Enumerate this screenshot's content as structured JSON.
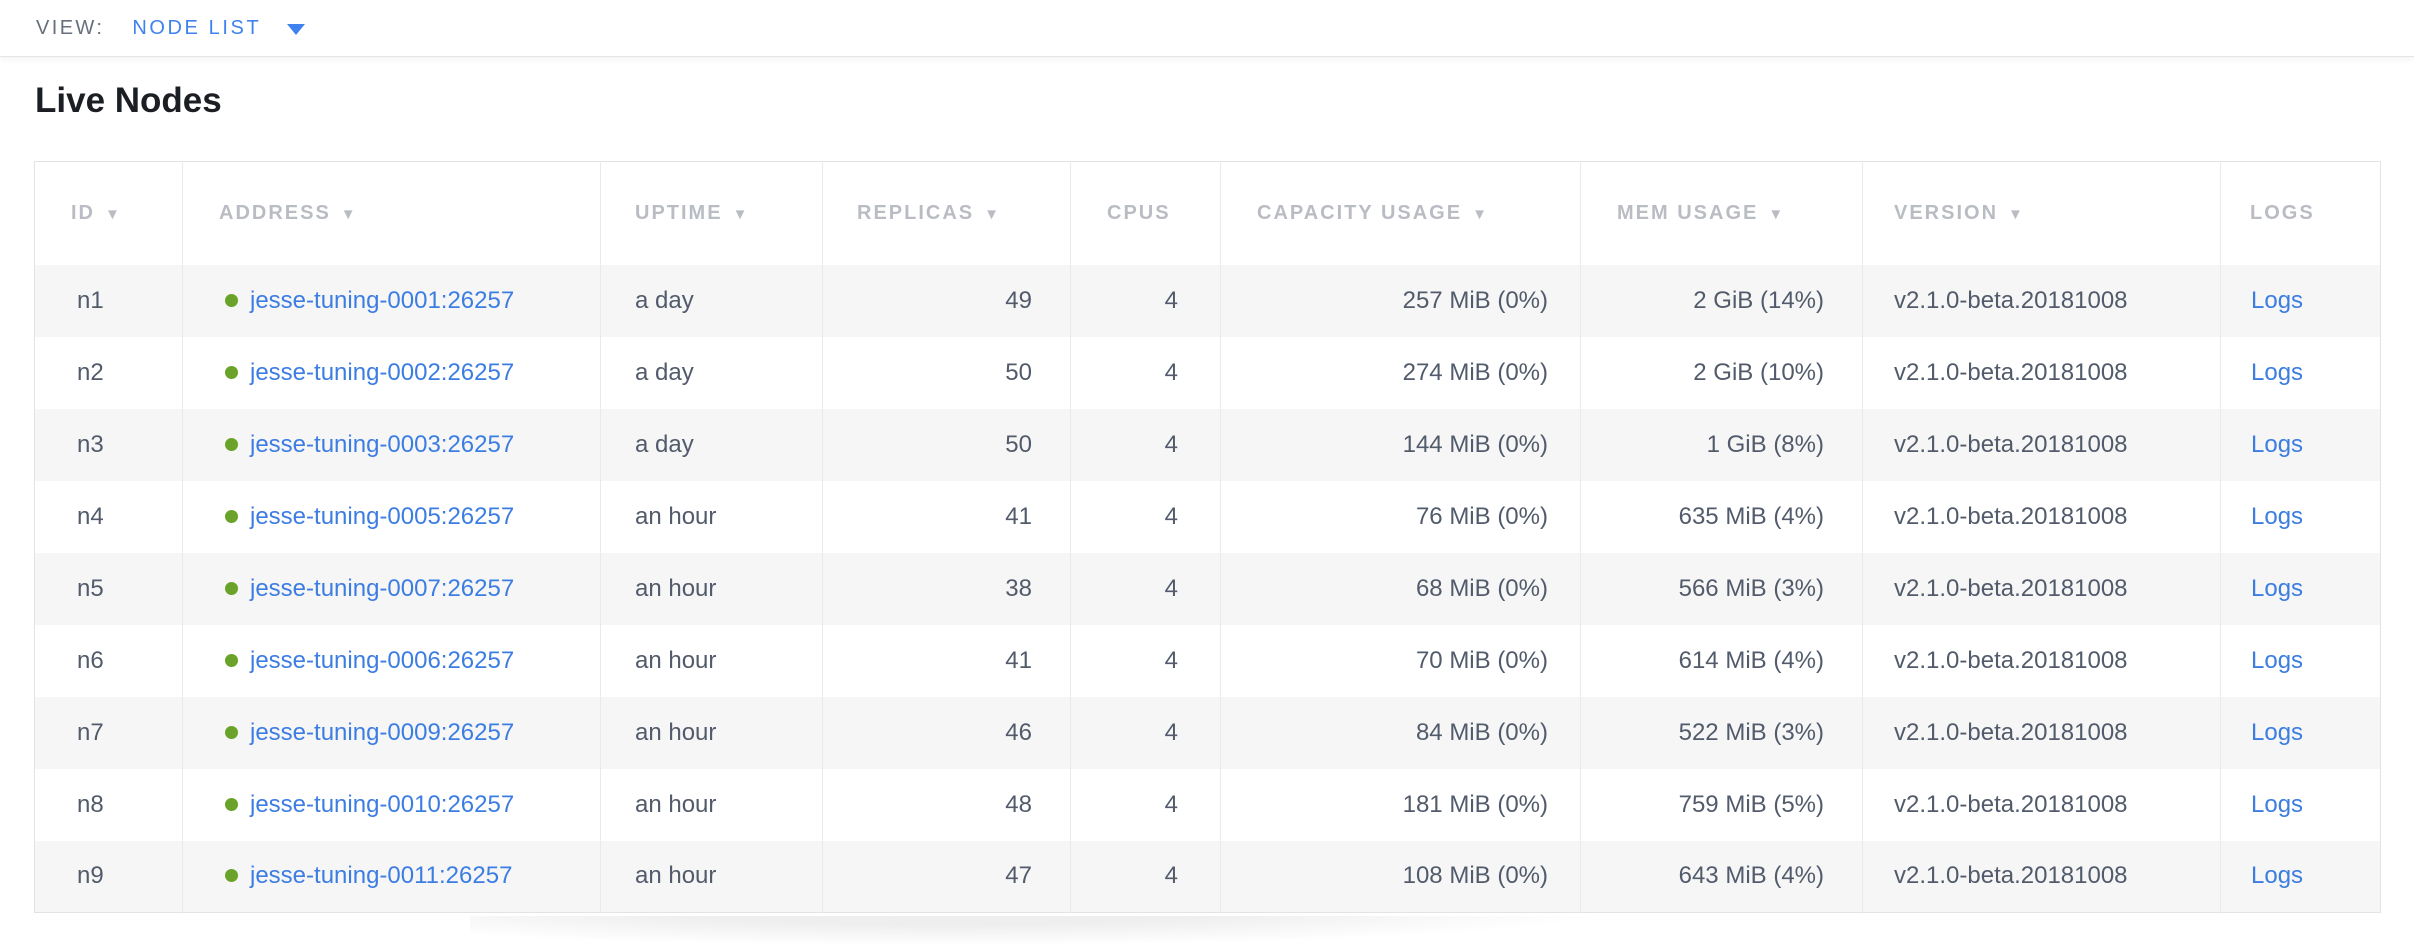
{
  "view_bar": {
    "label": "VIEW:",
    "selected": "NODE LIST",
    "dropdown_icon": "caret-down-icon"
  },
  "page": {
    "title": "Live Nodes"
  },
  "table": {
    "sort_arrow": "▼",
    "columns": [
      {
        "key": "id",
        "label": "ID",
        "sortable": true
      },
      {
        "key": "address",
        "label": "ADDRESS",
        "sortable": true
      },
      {
        "key": "uptime",
        "label": "UPTIME",
        "sortable": true
      },
      {
        "key": "replicas",
        "label": "REPLICAS",
        "sortable": true
      },
      {
        "key": "cpus",
        "label": "CPUS",
        "sortable": false
      },
      {
        "key": "capacity",
        "label": "CAPACITY USAGE",
        "sortable": true
      },
      {
        "key": "mem",
        "label": "MEM USAGE",
        "sortable": true
      },
      {
        "key": "version",
        "label": "VERSION",
        "sortable": true
      },
      {
        "key": "logs",
        "label": "LOGS",
        "sortable": false
      }
    ],
    "rows": [
      {
        "id": "n1",
        "status": "live",
        "address": "jesse-tuning-0001:26257",
        "uptime": "a day",
        "replicas": "49",
        "cpus": "4",
        "capacity": "257 MiB (0%)",
        "mem": "2 GiB (14%)",
        "version": "v2.1.0-beta.20181008",
        "logs": "Logs"
      },
      {
        "id": "n2",
        "status": "live",
        "address": "jesse-tuning-0002:26257",
        "uptime": "a day",
        "replicas": "50",
        "cpus": "4",
        "capacity": "274 MiB (0%)",
        "mem": "2 GiB (10%)",
        "version": "v2.1.0-beta.20181008",
        "logs": "Logs"
      },
      {
        "id": "n3",
        "status": "live",
        "address": "jesse-tuning-0003:26257",
        "uptime": "a day",
        "replicas": "50",
        "cpus": "4",
        "capacity": "144 MiB (0%)",
        "mem": "1 GiB (8%)",
        "version": "v2.1.0-beta.20181008",
        "logs": "Logs"
      },
      {
        "id": "n4",
        "status": "live",
        "address": "jesse-tuning-0005:26257",
        "uptime": "an hour",
        "replicas": "41",
        "cpus": "4",
        "capacity": "76 MiB (0%)",
        "mem": "635 MiB (4%)",
        "version": "v2.1.0-beta.20181008",
        "logs": "Logs"
      },
      {
        "id": "n5",
        "status": "live",
        "address": "jesse-tuning-0007:26257",
        "uptime": "an hour",
        "replicas": "38",
        "cpus": "4",
        "capacity": "68 MiB (0%)",
        "mem": "566 MiB (3%)",
        "version": "v2.1.0-beta.20181008",
        "logs": "Logs"
      },
      {
        "id": "n6",
        "status": "live",
        "address": "jesse-tuning-0006:26257",
        "uptime": "an hour",
        "replicas": "41",
        "cpus": "4",
        "capacity": "70 MiB (0%)",
        "mem": "614 MiB (4%)",
        "version": "v2.1.0-beta.20181008",
        "logs": "Logs"
      },
      {
        "id": "n7",
        "status": "live",
        "address": "jesse-tuning-0009:26257",
        "uptime": "an hour",
        "replicas": "46",
        "cpus": "4",
        "capacity": "84 MiB (0%)",
        "mem": "522 MiB (3%)",
        "version": "v2.1.0-beta.20181008",
        "logs": "Logs"
      },
      {
        "id": "n8",
        "status": "live",
        "address": "jesse-tuning-0010:26257",
        "uptime": "an hour",
        "replicas": "48",
        "cpus": "4",
        "capacity": "181 MiB (0%)",
        "mem": "759 MiB (5%)",
        "version": "v2.1.0-beta.20181008",
        "logs": "Logs"
      },
      {
        "id": "n9",
        "status": "live",
        "address": "jesse-tuning-0011:26257",
        "uptime": "an hour",
        "replicas": "47",
        "cpus": "4",
        "capacity": "108 MiB (0%)",
        "mem": "643 MiB (4%)",
        "version": "v2.1.0-beta.20181008",
        "logs": "Logs"
      }
    ]
  },
  "colors": {
    "accent_blue": "#3c7de2",
    "dropdown_blue": "#3f82ee",
    "status_live_green": "#6aa32a",
    "header_gray": "#b9bdc3",
    "text_slate": "#525b6b",
    "row_alt_background": "#f6f6f6",
    "title_color": "#1b1e23"
  }
}
